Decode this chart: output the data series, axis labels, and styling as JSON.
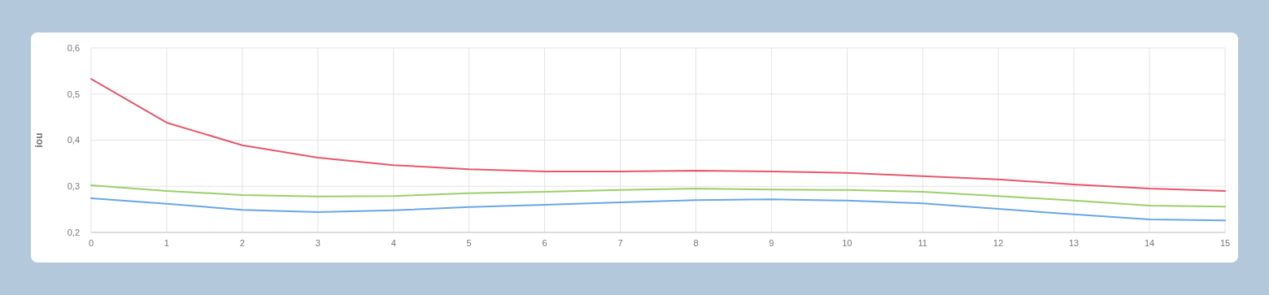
{
  "chart_data": {
    "type": "line",
    "ylabel": "iou",
    "x": [
      0,
      1,
      2,
      3,
      4,
      5,
      6,
      7,
      8,
      9,
      10,
      11,
      12,
      13,
      14,
      15
    ],
    "xlim": [
      0,
      15
    ],
    "xticks": [
      0,
      1,
      2,
      3,
      4,
      5,
      6,
      7,
      8,
      9,
      10,
      11,
      12,
      13,
      14,
      15
    ],
    "ylim": [
      0.2,
      0.6
    ],
    "yticks": [
      {
        "value": 0.2,
        "label": "0,2"
      },
      {
        "value": 0.3,
        "label": "0,3"
      },
      {
        "value": 0.4,
        "label": "0,4"
      },
      {
        "value": 0.5,
        "label": "0,5"
      },
      {
        "value": 0.6,
        "label": "0,6"
      }
    ],
    "grid": true,
    "marker": "none",
    "line_style": "solid",
    "series": [
      {
        "color": "#e8566b",
        "values": [
          0.533,
          0.438,
          0.389,
          0.362,
          0.346,
          0.337,
          0.332,
          0.332,
          0.334,
          0.332,
          0.329,
          0.322,
          0.315,
          0.304,
          0.295,
          0.29
        ]
      },
      {
        "color": "#9ccf6a",
        "values": [
          0.302,
          0.29,
          0.281,
          0.278,
          0.279,
          0.285,
          0.288,
          0.292,
          0.295,
          0.293,
          0.292,
          0.288,
          0.279,
          0.269,
          0.258,
          0.256
        ]
      },
      {
        "color": "#6aa6e8",
        "values": [
          0.274,
          0.262,
          0.249,
          0.244,
          0.248,
          0.255,
          0.26,
          0.265,
          0.27,
          0.272,
          0.269,
          0.263,
          0.251,
          0.239,
          0.228,
          0.226
        ]
      }
    ]
  }
}
